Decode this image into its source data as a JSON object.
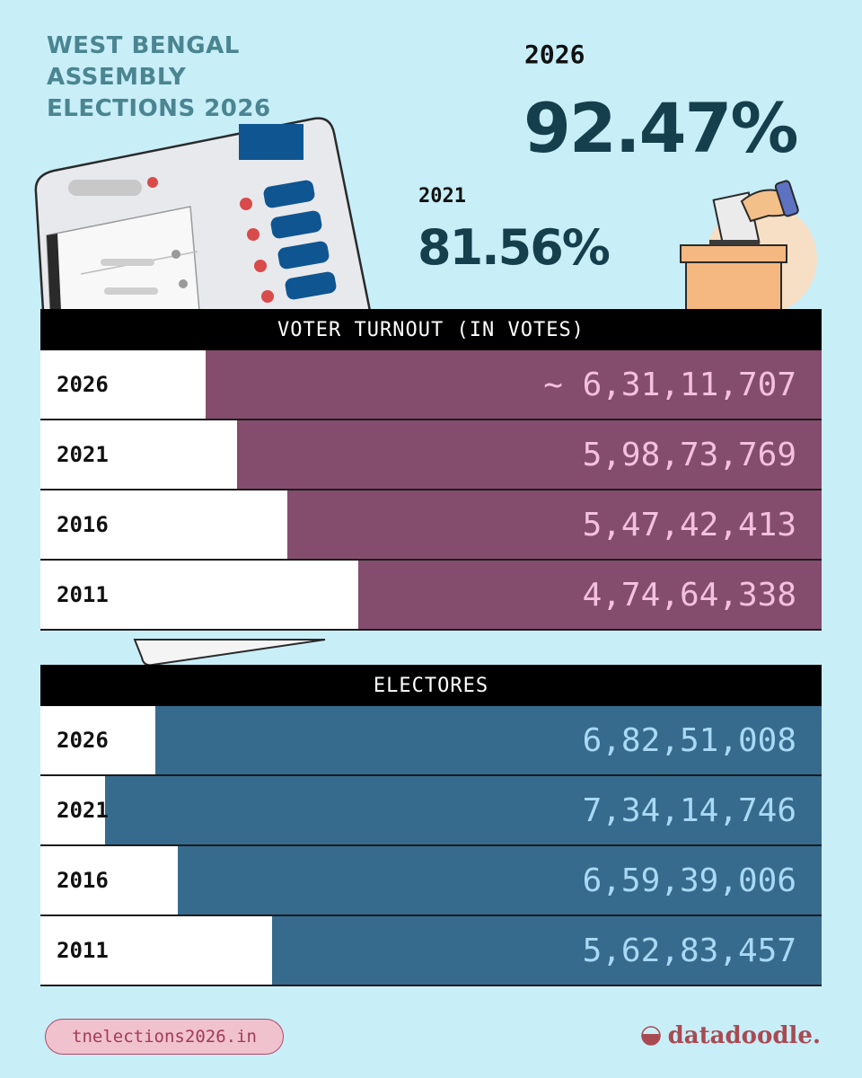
{
  "header": {
    "title_lines": [
      "WEST BENGAL",
      "ASSEMBLY",
      "ELECTIONS 2026"
    ]
  },
  "turnout_pct": {
    "current": {
      "year": "2026",
      "value": "92.47%"
    },
    "previous": {
      "year": "2021",
      "value": "81.56%"
    }
  },
  "chart_data": [
    {
      "type": "bar",
      "title": "VOTER TURNOUT (IN VOTES)",
      "categories": [
        "2026",
        "2021",
        "2016",
        "2011"
      ],
      "values": [
        63111707,
        59873769,
        54742413,
        47464338
      ],
      "labels": [
        "~ 6,31,11,707",
        "5,98,73,769",
        "5,47,42,413",
        "4,74,64,338"
      ],
      "orientation": "horizontal",
      "color": "#844d6d"
    },
    {
      "type": "bar",
      "title": "ELECTORES",
      "categories": [
        "2026",
        "2021",
        "2016",
        "2011"
      ],
      "values": [
        68251008,
        73414746,
        65939006,
        56283457
      ],
      "labels": [
        "6,82,51,008",
        "7,34,14,746",
        "6,59,39,006",
        "5,62,83,457"
      ],
      "orientation": "horizontal",
      "color": "#366b8d"
    }
  ],
  "footer": {
    "link": "tnelections2026.in",
    "brand": "datadoodle."
  }
}
